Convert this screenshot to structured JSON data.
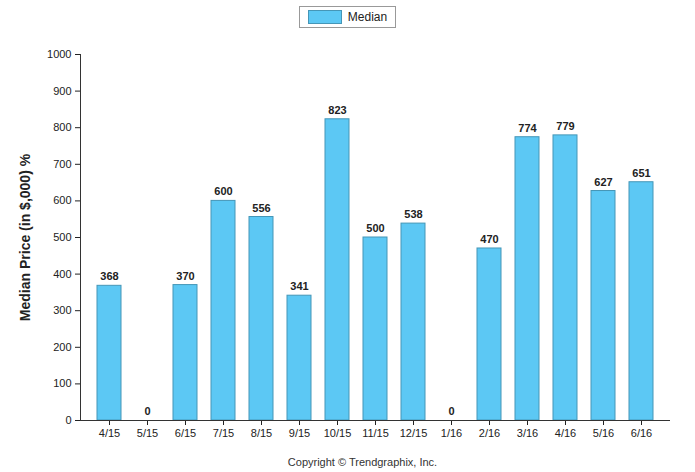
{
  "chart_data": {
    "type": "bar",
    "y_label": "Median Price (in $,000) %",
    "caption": "Copyright © Trendgraphix, Inc.",
    "categories": [
      "4/15",
      "5/15",
      "6/15",
      "7/15",
      "8/15",
      "9/15",
      "10/15",
      "11/15",
      "12/15",
      "1/16",
      "2/16",
      "3/16",
      "4/16",
      "5/16",
      "6/16"
    ],
    "series": [
      {
        "name": "Median",
        "color": "#5cc8f4",
        "values": [
          368,
          0,
          370,
          600,
          556,
          341,
          823,
          500,
          538,
          0,
          470,
          774,
          779,
          627,
          651
        ]
      }
    ],
    "ylim": [
      0,
      1000
    ],
    "yticks": [
      0,
      100,
      200,
      300,
      400,
      500,
      600,
      700,
      800,
      900,
      1000
    ],
    "grid": false,
    "legend": "top",
    "data_labels": true
  }
}
